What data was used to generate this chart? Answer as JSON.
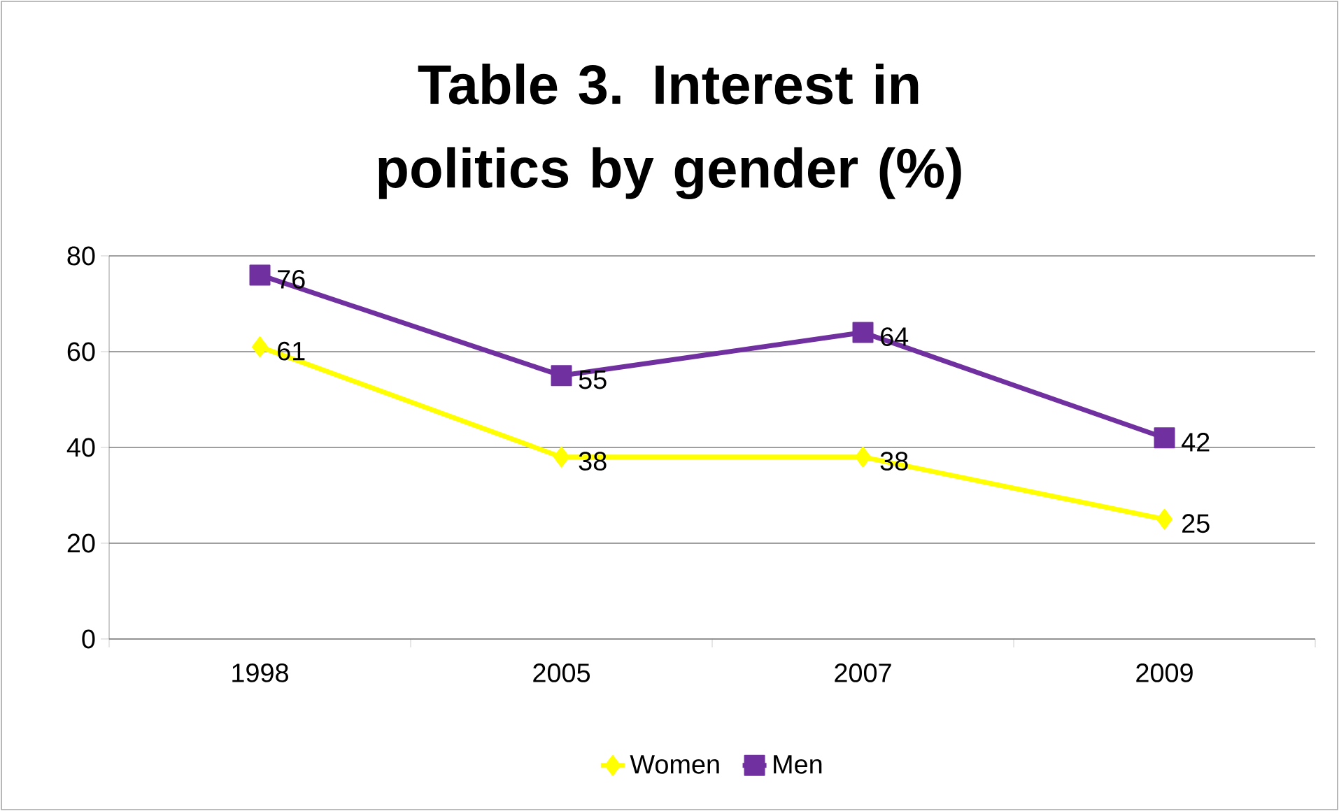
{
  "chart_data": {
    "type": "line",
    "title": "Table 3. Interest in politics by gender (%)",
    "categories": [
      "1998",
      "2005",
      "2007",
      "2009"
    ],
    "series": [
      {
        "name": "Women",
        "color": "#ffff00",
        "marker": "diamond",
        "values": [
          61,
          38,
          38,
          25
        ]
      },
      {
        "name": "Men",
        "color": "#7030a0",
        "marker": "square",
        "values": [
          76,
          55,
          64,
          42
        ]
      }
    ],
    "ylim": [
      0,
      80
    ],
    "yticks": [
      0,
      20,
      40,
      60,
      80
    ],
    "grid": "y",
    "legend": "bottom",
    "data_labels": true
  }
}
